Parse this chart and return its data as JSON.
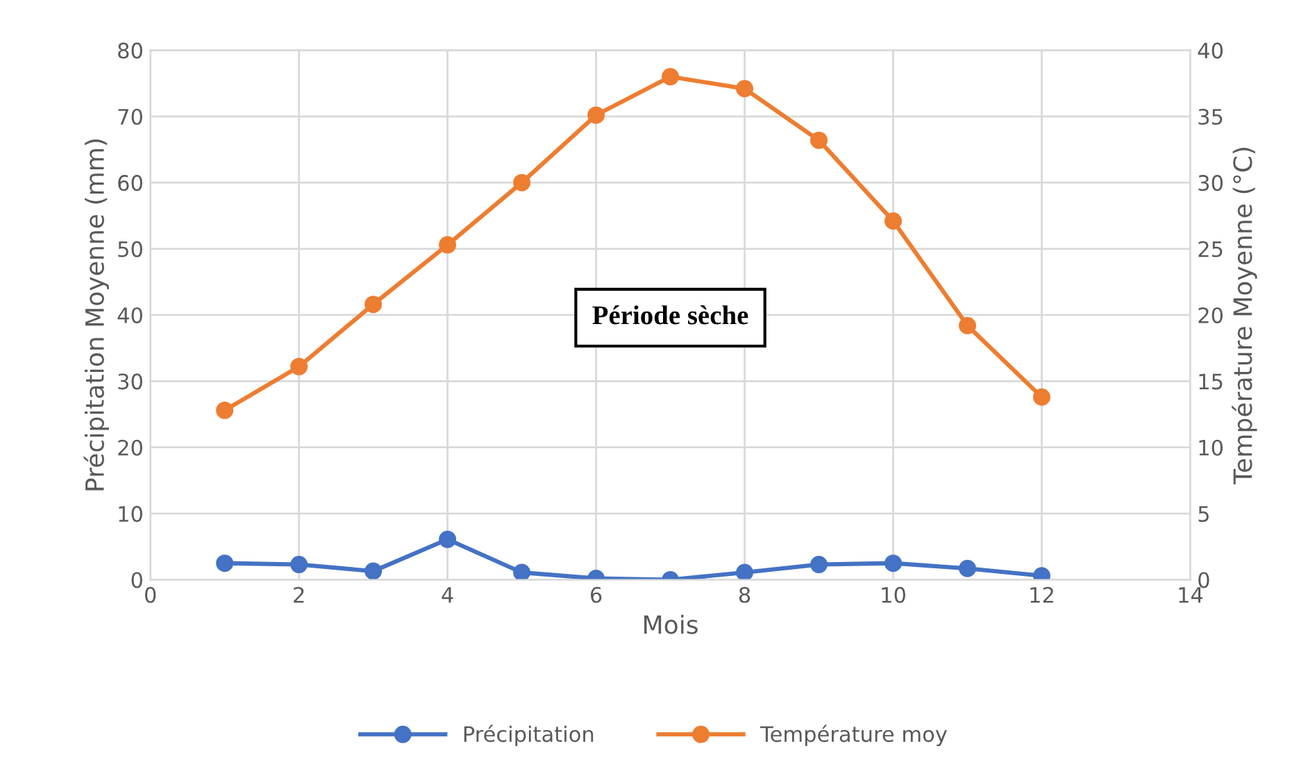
{
  "chart_data": {
    "type": "line",
    "xlabel": "Mois",
    "ylabel": "Précipitation Moyenne (mm)",
    "y2label": "Température Moyenne (°C)",
    "x": [
      1,
      2,
      3,
      4,
      5,
      6,
      7,
      8,
      9,
      10,
      11,
      12
    ],
    "series": [
      {
        "name": "Précipitation",
        "color": "#4472c4",
        "values": [
          2.5,
          2.3,
          1.3,
          6.1,
          1.1,
          0.2,
          0,
          1.1,
          2.3,
          2.5,
          1.7,
          0.6
        ]
      },
      {
        "name": "Température moy",
        "color": "#ed7d31",
        "axis": "y2",
        "values": [
          12.8,
          16.1,
          20.8,
          25.3,
          30.0,
          35.1,
          38.0,
          37.1,
          33.2,
          27.1,
          19.2,
          13.8
        ]
      }
    ],
    "xlim": [
      0,
      14
    ],
    "xticks": [
      0,
      2,
      4,
      6,
      8,
      10,
      12,
      14
    ],
    "ylim": [
      0,
      80
    ],
    "yticks": [
      0,
      10,
      20,
      30,
      40,
      50,
      60,
      70,
      80
    ],
    "y2lim": [
      0,
      40
    ],
    "y2ticks": [
      0,
      5,
      10,
      15,
      20,
      25,
      30,
      35,
      40
    ],
    "annotations": [
      "Période sèche"
    ],
    "grid": true,
    "legend": "bottom",
    "marker": "circle",
    "line_style": "solid"
  }
}
